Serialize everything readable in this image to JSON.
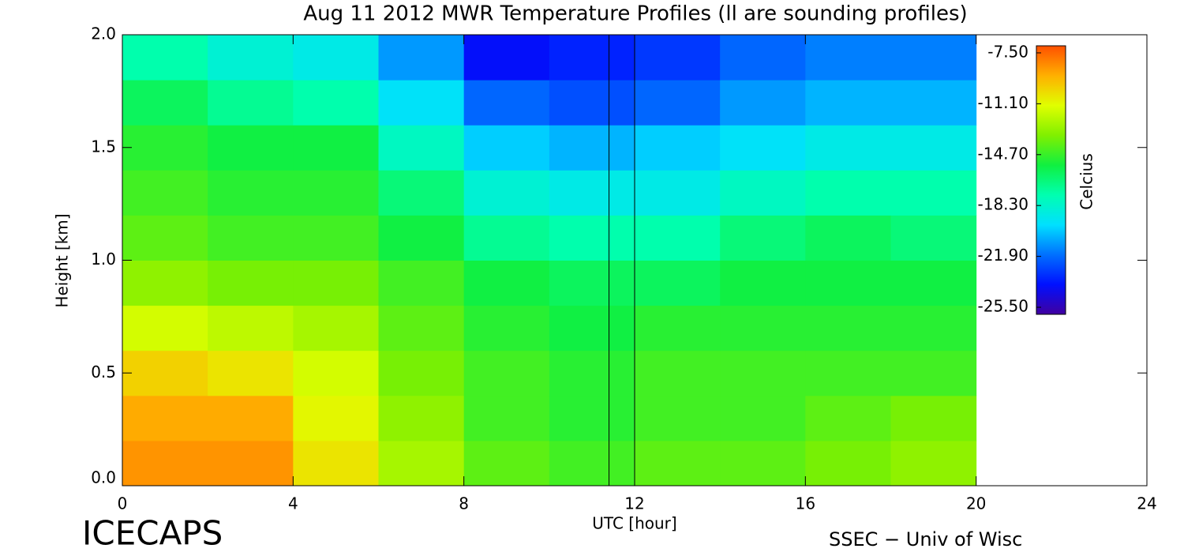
{
  "chart_data": {
    "type": "heatmap",
    "title": "Aug 11 2012 MWR Temperature Profiles (ll are sounding profiles)",
    "xlabel": "UTC [hour]",
    "ylabel": "Height [km]",
    "colorbar_label": "Celcius",
    "footer_left": "ICECAPS",
    "footer_right": "SSEC − Univ of Wisc",
    "xlim": [
      0,
      24
    ],
    "xticks": [
      0,
      4,
      8,
      12,
      16,
      20,
      24
    ],
    "ylim": [
      0,
      2
    ],
    "yticks": [
      {
        "value": 0,
        "label": "0.0"
      },
      0.5,
      {
        "value": 1,
        "label": "1.0"
      },
      1.5,
      {
        "value": 2,
        "label": "2.0"
      }
    ],
    "xbins": [
      0,
      2,
      4,
      6,
      8,
      10,
      12,
      14,
      16,
      18,
      20
    ],
    "ybins": [
      0,
      0.2,
      0.4,
      0.6,
      0.8,
      1.0,
      1.2,
      1.4,
      1.6,
      1.8,
      2.0
    ],
    "z": [
      [
        -8.5,
        -8.5,
        -10.5,
        -12.5,
        -14,
        -14.5,
        -14,
        -14,
        -13.5,
        -13
      ],
      [
        -9,
        -9,
        -11,
        -13,
        -14.5,
        -15,
        -14.5,
        -14.5,
        -14,
        -13.5
      ],
      [
        -10,
        -10.5,
        -11.5,
        -13.5,
        -14.5,
        -15,
        -14.5,
        -14.5,
        -14.5,
        -14.5
      ],
      [
        -11.5,
        -12,
        -12.5,
        -14,
        -15,
        -15.5,
        -15,
        -15,
        -15,
        -15
      ],
      [
        -13,
        -13.5,
        -13.5,
        -14.5,
        -15.5,
        -16,
        -16,
        -15.5,
        -15.5,
        -15.5
      ],
      [
        -14,
        -14.5,
        -14.5,
        -15.5,
        -17,
        -17.5,
        -17.5,
        -16.5,
        -16,
        -16.5
      ],
      [
        -14.5,
        -15,
        -15,
        -16.5,
        -18.5,
        -19,
        -19,
        -18,
        -17.5,
        -17.5
      ],
      [
        -15,
        -15.5,
        -15.5,
        -18,
        -20,
        -20.5,
        -20,
        -19.5,
        -19,
        -19
      ],
      [
        -16,
        -17,
        -17.5,
        -19.5,
        -22,
        -22.5,
        -22,
        -21,
        -20.5,
        -20.5
      ],
      [
        -17.5,
        -18.5,
        -19,
        -21,
        -24,
        -23.5,
        -23,
        -22,
        -21.5,
        -21.5
      ]
    ],
    "zlim": [
      -26,
      -7
    ],
    "cticks": [
      {
        "value": -7.5,
        "label": "-7.50"
      },
      {
        "value": -11.1,
        "label": "-11.10"
      },
      {
        "value": -14.7,
        "label": "-14.70"
      },
      {
        "value": -18.3,
        "label": "-18.30"
      },
      {
        "value": -21.9,
        "label": "-21.90"
      },
      {
        "value": -25.5,
        "label": "-25.50"
      }
    ],
    "colormap": [
      "#4000a0",
      "#0010ff",
      "#0070ff",
      "#00e0ff",
      "#00ffb0",
      "#10f040",
      "#80f000",
      "#e0ff00",
      "#ffb000",
      "#ff5000"
    ],
    "sounding_x": [
      11.4,
      12.0
    ]
  }
}
